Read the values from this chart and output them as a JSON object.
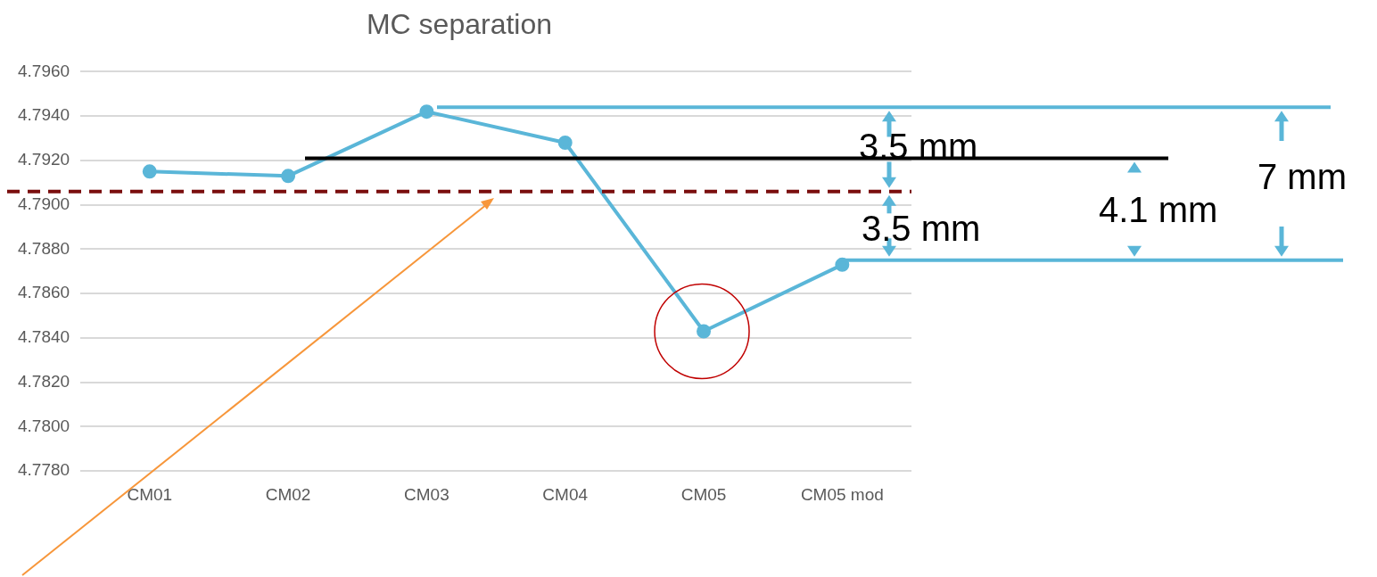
{
  "chart_data": {
    "type": "line",
    "title": "MC separation",
    "categories": [
      "CM01",
      "CM02",
      "CM03",
      "CM04",
      "CM05",
      "CM05 mod"
    ],
    "series": [
      {
        "color": "#5ab6d8",
        "values": [
          4.7915,
          4.7913,
          4.7942,
          4.7928,
          4.7843,
          4.7873
        ]
      }
    ],
    "ylim": [
      4.778,
      4.796
    ],
    "yticks": [
      {
        "value": 4.778,
        "label": "4.7780"
      },
      {
        "value": 4.78,
        "label": "4.7800"
      },
      {
        "value": 4.782,
        "label": "4.7820"
      },
      {
        "value": 4.784,
        "label": "4.7840"
      },
      {
        "value": 4.786,
        "label": "4.7860"
      },
      {
        "value": 4.788,
        "label": "4.7880"
      },
      {
        "value": 4.79,
        "label": "4.7900"
      },
      {
        "value": 4.792,
        "label": "4.7920"
      },
      {
        "value": 4.794,
        "label": "4.7940"
      },
      {
        "value": 4.796,
        "label": "4.7960"
      }
    ],
    "ref_lines": [
      {
        "axis": "y",
        "value": 4.7944,
        "color": "#5ab6d8"
      },
      {
        "axis": "y",
        "value": 4.7921,
        "color": "#000000"
      },
      {
        "axis": "y",
        "value": 4.7906,
        "color": "#7a0e0e",
        "line_style": "dashed"
      },
      {
        "axis": "y",
        "value": 4.7875,
        "color": "#5ab6d8"
      }
    ],
    "annotations": [
      "3.5 mm",
      "3.5 mm",
      "4.1 mm",
      "7 mm"
    ],
    "grid": "y",
    "legend": false,
    "marker": "circle",
    "line_style": "solid"
  }
}
